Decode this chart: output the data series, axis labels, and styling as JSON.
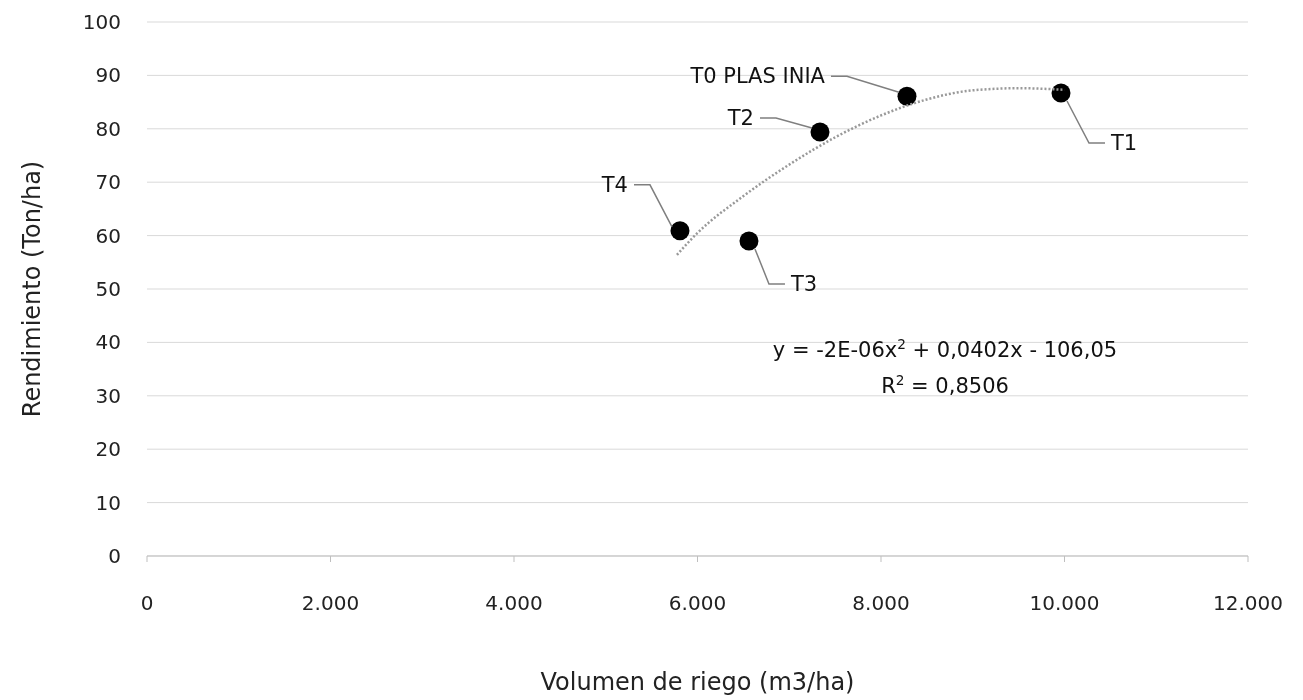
{
  "chart_data": {
    "type": "scatter",
    "xlabel": "Volumen de riego (m3/ha)",
    "ylabel": "Rendimiento (Ton/ha)",
    "xlim": [
      0,
      12000
    ],
    "xticks": [
      0,
      {
        "value": 2000,
        "label": "2.000"
      },
      {
        "value": 4000,
        "label": "4.000"
      },
      {
        "value": 6000,
        "label": "6.000"
      },
      {
        "value": 8000,
        "label": "8.000"
      },
      {
        "value": 10000,
        "label": "10.000"
      },
      {
        "value": 12000,
        "label": "12.000"
      }
    ],
    "ylim": [
      0,
      100
    ],
    "yticks": [
      0,
      10,
      20,
      30,
      40,
      50,
      60,
      70,
      80,
      90,
      100
    ],
    "grid": "y",
    "marker": "circle",
    "series": [
      {
        "color": "#000000",
        "x": [
          8283,
          9962,
          7335,
          6561,
          5809
        ],
        "values": [
          86.1,
          86.7,
          79.4,
          59.0,
          60.9
        ]
      },
      {
        "type": "line",
        "color": "#999999",
        "line_style": "dotted",
        "marker": "none",
        "x": [
          5776,
          6000,
          6500,
          7000,
          7500,
          8000,
          8500,
          9000,
          9500,
          10000
        ],
        "values": [
          56.4,
          60.5,
          67.4,
          73.3,
          78.4,
          82.5,
          85.5,
          87.2,
          87.6,
          87.3
        ]
      }
    ],
    "annotations": [
      {
        "text": "T0 PLAS INIA",
        "x": 8283,
        "y": 86.1
      },
      {
        "text": "T1",
        "x": 9962,
        "y": 86.7
      },
      {
        "text": "T2",
        "x": 7335,
        "y": 79.4
      },
      {
        "text": "T3",
        "x": 6561,
        "y": 59.0
      },
      {
        "text": "T4",
        "x": 5809,
        "y": 60.9
      },
      "y = -2E-06x$^{2}$ + 0,0402x - 106,05",
      "R$^{2}$ = 0,8506"
    ]
  }
}
